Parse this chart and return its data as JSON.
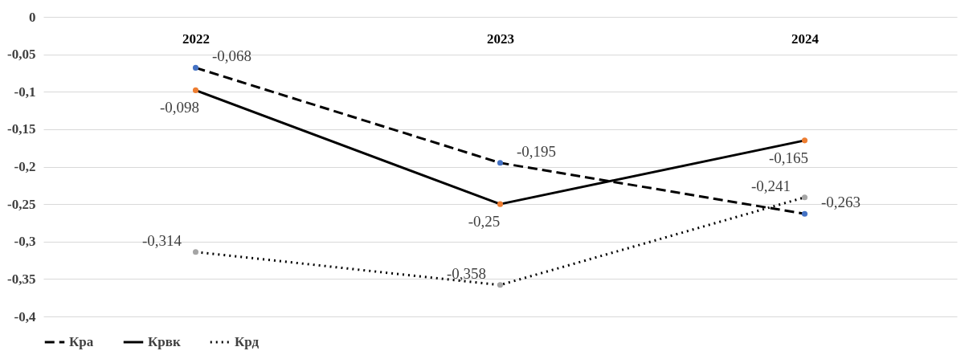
{
  "chart_data": {
    "type": "line",
    "categories": [
      "2022",
      "2023",
      "2024"
    ],
    "series": [
      {
        "name": "Кра",
        "color": "#4472c4",
        "line_style": "dashed",
        "values": [
          -0.068,
          -0.195,
          -0.263
        ],
        "value_labels": [
          "-0,068",
          "-0,195",
          "-0,263"
        ]
      },
      {
        "name": "Крвк",
        "color": "#ed7d31",
        "line_style": "solid",
        "values": [
          -0.098,
          -0.25,
          -0.165
        ],
        "value_labels": [
          "-0,098",
          "-0,25",
          "-0,165"
        ]
      },
      {
        "name": "Крд",
        "color": "#a5a5a5",
        "line_style": "dotted",
        "values": [
          -0.314,
          -0.358,
          -0.241
        ],
        "value_labels": [
          "-0,314",
          "-0,358",
          "-0,241"
        ]
      }
    ],
    "ylim": [
      -0.4,
      0
    ],
    "yticks": [
      {
        "value": -0.4,
        "label": "-0,4"
      },
      {
        "value": -0.35,
        "label": "-0,35"
      },
      {
        "value": -0.3,
        "label": "-0,3"
      },
      {
        "value": -0.25,
        "label": "-0,25"
      },
      {
        "value": -0.2,
        "label": "-0,2"
      },
      {
        "value": -0.15,
        "label": "-0,15"
      },
      {
        "value": -0.1,
        "label": "-0,1"
      },
      {
        "value": -0.05,
        "label": "-0,05"
      },
      0
    ],
    "grid": "y",
    "legend": "bottom",
    "marker": "circle"
  }
}
